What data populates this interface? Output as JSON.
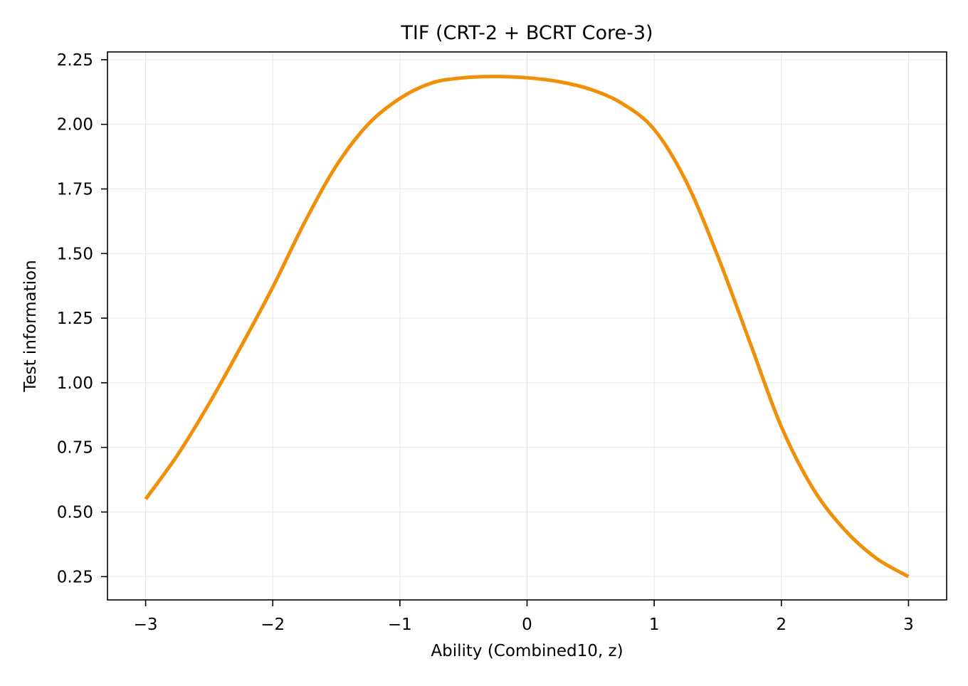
{
  "chart_data": {
    "type": "line",
    "title": "TIF (CRT-2 + BCRT Core-3)",
    "xlabel": "Ability (Combined10, z)",
    "ylabel": "Test information",
    "xlim": [
      -3.3,
      3.3
    ],
    "ylim": [
      0.16,
      2.28
    ],
    "xticks": [
      -3,
      -2,
      -1,
      0,
      1,
      2,
      3
    ],
    "xtick_labels": [
      "−3",
      "−2",
      "−1",
      "0",
      "1",
      "2",
      "3"
    ],
    "yticks": [
      0.25,
      0.5,
      0.75,
      1.0,
      1.25,
      1.5,
      1.75,
      2.0,
      2.25
    ],
    "ytick_labels": [
      "0.25",
      "0.50",
      "0.75",
      "1.00",
      "1.25",
      "1.50",
      "1.75",
      "2.00",
      "2.25"
    ],
    "grid": true,
    "colors": {
      "line": "#f0900a",
      "grid": "#e6e6e6",
      "axes": "#000000"
    },
    "series": [
      {
        "x": [
          -3.0,
          -2.75,
          -2.5,
          -2.25,
          -2.0,
          -1.75,
          -1.5,
          -1.25,
          -1.0,
          -0.75,
          -0.5,
          -0.25,
          0.0,
          0.25,
          0.5,
          0.75,
          1.0,
          1.25,
          1.5,
          1.75,
          2.0,
          2.25,
          2.5,
          2.75,
          3.0
        ],
        "y": [
          0.55,
          0.72,
          0.92,
          1.14,
          1.37,
          1.62,
          1.84,
          2.0,
          2.1,
          2.16,
          2.18,
          2.185,
          2.18,
          2.165,
          2.135,
          2.08,
          1.98,
          1.78,
          1.49,
          1.16,
          0.83,
          0.59,
          0.43,
          0.32,
          0.25
        ]
      }
    ]
  }
}
